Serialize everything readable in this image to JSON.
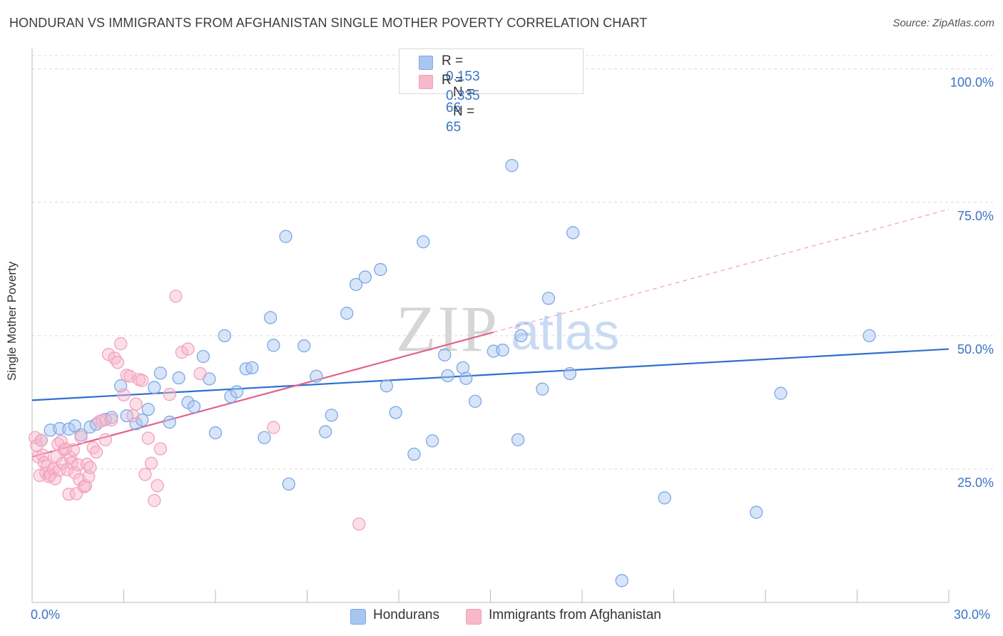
{
  "title": "HONDURAN VS IMMIGRANTS FROM AFGHANISTAN SINGLE MOTHER POVERTY CORRELATION CHART",
  "source": "Source: ZipAtlas.com",
  "watermark": {
    "zip": "ZIP",
    "atlas": "atlas"
  },
  "legend_top": [
    {
      "r_label": "R =",
      "r_value": "0.153",
      "n_label": "N =",
      "n_value": "66",
      "color": "#a8c6f0"
    },
    {
      "r_label": "R =",
      "r_value": "0.335",
      "n_label": "N =",
      "n_value": "65",
      "color": "#f7b8cb"
    }
  ],
  "legend_bottom": [
    {
      "label": "Hondurans",
      "color": "#a8c6f0"
    },
    {
      "label": "Immigrants from Afghanistan",
      "color": "#f7b8cb"
    }
  ],
  "x_tick_left": "0.0%",
  "x_tick_right": "30.0%",
  "chart_data": {
    "type": "scatter",
    "title": "HONDURAN VS IMMIGRANTS FROM AFGHANISTAN SINGLE MOTHER POVERTY CORRELATION CHART",
    "xlabel": "",
    "ylabel": "Single Mother Poverty",
    "xlim": [
      0,
      30
    ],
    "ylim": [
      0,
      102.5
    ],
    "y_ticks": [
      {
        "value": 25,
        "label": "25.0%"
      },
      {
        "value": 50,
        "label": "50.0%"
      },
      {
        "value": 75,
        "label": "75.0%"
      },
      {
        "value": 100,
        "label": "100.0%"
      }
    ],
    "x_tick_marks": [
      0,
      3,
      6,
      9,
      12,
      15,
      18,
      21,
      24,
      27,
      30
    ],
    "grid": true,
    "legend_position": "top-center",
    "series": [
      {
        "name": "Hondurans",
        "color": "#7aa8e8",
        "fill": "#a8c6f0",
        "trend": {
          "x": [
            0,
            30
          ],
          "y": [
            37.9,
            47.5
          ],
          "color": "#2f6fcf",
          "dashed_from": null
        },
        "points": [
          [
            0.3,
            30.4
          ],
          [
            0.6,
            32.3
          ],
          [
            0.9,
            32.6
          ],
          [
            1.2,
            32.5
          ],
          [
            1.4,
            33.1
          ],
          [
            1.6,
            31.4
          ],
          [
            1.9,
            32.9
          ],
          [
            2.1,
            33.4
          ],
          [
            2.4,
            34.3
          ],
          [
            2.6,
            34.7
          ],
          [
            2.9,
            40.6
          ],
          [
            3.1,
            35.0
          ],
          [
            3.4,
            33.5
          ],
          [
            3.6,
            34.2
          ],
          [
            3.8,
            36.2
          ],
          [
            4.0,
            40.3
          ],
          [
            4.2,
            43.0
          ],
          [
            4.5,
            33.8
          ],
          [
            4.8,
            42.1
          ],
          [
            5.1,
            37.5
          ],
          [
            5.3,
            36.7
          ],
          [
            5.6,
            46.1
          ],
          [
            5.8,
            41.9
          ],
          [
            6.0,
            31.8
          ],
          [
            6.3,
            50.0
          ],
          [
            6.5,
            38.6
          ],
          [
            6.7,
            39.5
          ],
          [
            7.0,
            43.8
          ],
          [
            7.2,
            44.0
          ],
          [
            7.6,
            30.9
          ],
          [
            7.8,
            53.4
          ],
          [
            7.9,
            48.2
          ],
          [
            8.3,
            68.6
          ],
          [
            8.4,
            22.2
          ],
          [
            8.9,
            48.1
          ],
          [
            9.3,
            42.4
          ],
          [
            9.6,
            32.0
          ],
          [
            9.8,
            35.1
          ],
          [
            10.3,
            54.2
          ],
          [
            10.6,
            59.6
          ],
          [
            10.9,
            61.0
          ],
          [
            11.4,
            62.4
          ],
          [
            11.6,
            40.6
          ],
          [
            11.9,
            35.6
          ],
          [
            12.5,
            27.8
          ],
          [
            12.8,
            67.6
          ],
          [
            13.1,
            30.3
          ],
          [
            13.5,
            46.4
          ],
          [
            13.6,
            42.5
          ],
          [
            14.1,
            44.0
          ],
          [
            14.2,
            42.0
          ],
          [
            14.5,
            37.7
          ],
          [
            15.1,
            47.1
          ],
          [
            15.4,
            47.3
          ],
          [
            15.7,
            81.9
          ],
          [
            15.9,
            30.5
          ],
          [
            16.0,
            50.0
          ],
          [
            16.7,
            40.0
          ],
          [
            16.9,
            57.0
          ],
          [
            17.6,
            42.9
          ],
          [
            17.7,
            69.3
          ],
          [
            19.3,
            4.1
          ],
          [
            20.7,
            19.6
          ],
          [
            23.7,
            16.9
          ],
          [
            24.5,
            39.2
          ],
          [
            27.4,
            50.0
          ]
        ]
      },
      {
        "name": "Immigrants from Afghanistan",
        "color": "#f4a0ba",
        "fill": "#f7b8cb",
        "trend": {
          "x": [
            0,
            30
          ],
          "y": [
            27.3,
            73.7
          ],
          "color": "#e0628e",
          "dashed_from": 15.1
        },
        "points": [
          [
            0.1,
            30.9
          ],
          [
            0.15,
            29.4
          ],
          [
            0.2,
            27.3
          ],
          [
            0.25,
            23.8
          ],
          [
            0.3,
            30.4
          ],
          [
            0.35,
            27.6
          ],
          [
            0.4,
            26.2
          ],
          [
            0.45,
            24.3
          ],
          [
            0.5,
            25.6
          ],
          [
            0.55,
            23.6
          ],
          [
            0.6,
            23.9
          ],
          [
            0.7,
            25.0
          ],
          [
            0.75,
            23.2
          ],
          [
            0.8,
            27.4
          ],
          [
            0.85,
            29.7
          ],
          [
            0.9,
            24.8
          ],
          [
            0.95,
            30.2
          ],
          [
            1.0,
            26.1
          ],
          [
            1.05,
            28.6
          ],
          [
            1.1,
            28.8
          ],
          [
            1.15,
            24.9
          ],
          [
            1.2,
            20.3
          ],
          [
            1.25,
            27.2
          ],
          [
            1.3,
            26.2
          ],
          [
            1.35,
            28.6
          ],
          [
            1.4,
            24.3
          ],
          [
            1.45,
            20.4
          ],
          [
            1.5,
            25.8
          ],
          [
            1.55,
            23.0
          ],
          [
            1.6,
            31.0
          ],
          [
            1.7,
            21.7
          ],
          [
            1.75,
            21.9
          ],
          [
            1.8,
            25.9
          ],
          [
            1.85,
            23.6
          ],
          [
            1.9,
            25.3
          ],
          [
            2.0,
            29.0
          ],
          [
            2.1,
            28.2
          ],
          [
            2.2,
            33.9
          ],
          [
            2.3,
            34.1
          ],
          [
            2.4,
            30.5
          ],
          [
            2.5,
            46.5
          ],
          [
            2.6,
            34.2
          ],
          [
            2.7,
            45.8
          ],
          [
            2.8,
            45.0
          ],
          [
            2.9,
            48.5
          ],
          [
            3.0,
            38.9
          ],
          [
            3.1,
            42.6
          ],
          [
            3.2,
            42.4
          ],
          [
            3.3,
            35.0
          ],
          [
            3.4,
            37.2
          ],
          [
            3.5,
            41.8
          ],
          [
            3.6,
            41.6
          ],
          [
            3.7,
            24.0
          ],
          [
            3.8,
            30.8
          ],
          [
            3.9,
            26.1
          ],
          [
            4.0,
            19.1
          ],
          [
            4.1,
            21.9
          ],
          [
            4.2,
            28.8
          ],
          [
            4.5,
            39.0
          ],
          [
            4.7,
            57.4
          ],
          [
            4.9,
            46.9
          ],
          [
            5.1,
            47.5
          ],
          [
            5.5,
            42.9
          ],
          [
            7.9,
            32.8
          ],
          [
            10.7,
            14.7
          ]
        ]
      }
    ]
  }
}
